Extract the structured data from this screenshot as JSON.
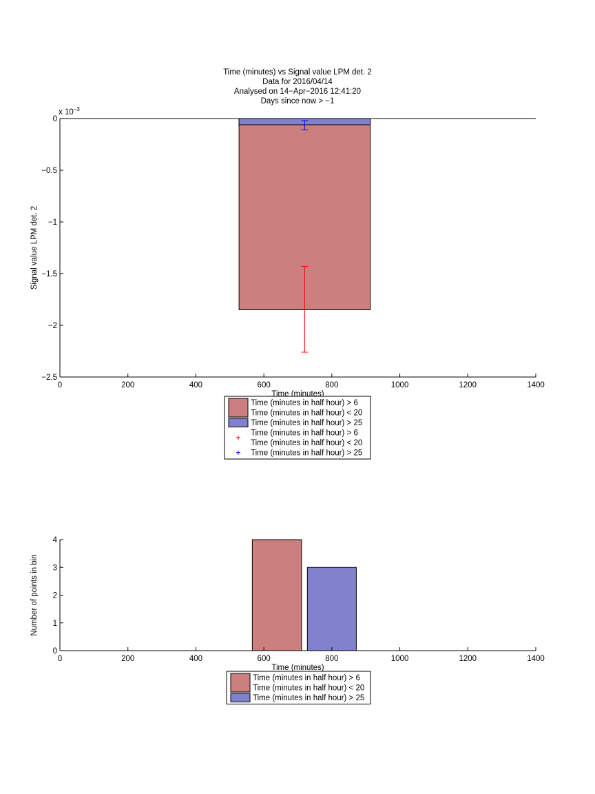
{
  "title_lines": [
    "Time (minutes) vs Signal value LPM det. 2",
    "Data for 2016/04/14",
    "Analysed on 14−Apr−2016 12:41:20",
    "Days since now > −1"
  ],
  "colors": {
    "series1": "#cc7f7f",
    "series2": "#8181cc",
    "err1": "#ff0000",
    "err2": "#0000ff"
  },
  "chart_data": [
    {
      "type": "bar",
      "xlabel": "Time (minutes)",
      "ylabel": "Signal value LPM det. 2",
      "y_exponent_label": "x 10",
      "y_exponent_power": "−3",
      "xlim": [
        0,
        1400
      ],
      "ylim": [
        -0.0025,
        0
      ],
      "x_ticks": [
        0,
        200,
        400,
        600,
        800,
        1000,
        1200,
        1400
      ],
      "x_tick_labels": [
        "0",
        "200",
        "400",
        "600",
        "800",
        "1000",
        "1200",
        "1400"
      ],
      "y_ticks": [
        0,
        -0.0005,
        -0.001,
        -0.0015,
        -0.002,
        -0.0025
      ],
      "y_tick_labels": [
        "0",
        "−0.5",
        "−1",
        "−1.5",
        "−2",
        "−2.5"
      ],
      "bar_x_range": [
        527,
        913
      ],
      "series": [
        {
          "name": "Time (minutes in half hour) > 6\nTime (minutes in half hour) < 20",
          "value": -0.00185,
          "error_x": 720,
          "error_low": -0.00226,
          "error_high": -0.00143
        },
        {
          "name": "Time (minutes in half hour) > 25",
          "value": -6e-05,
          "error_x": 720,
          "error_low": -0.00011,
          "error_high": -2e-05
        }
      ],
      "legend": {
        "placement": "below",
        "entries": [
          {
            "marker": "patch",
            "series": 0,
            "lines": [
              "Time (minutes in half hour) > 6",
              "Time (minutes in half hour) < 20"
            ]
          },
          {
            "marker": "patch",
            "series": 1,
            "lines": [
              "Time (minutes in half hour) > 25"
            ]
          },
          {
            "marker": "plus",
            "series": 0,
            "lines": [
              "Time (minutes in half hour) > 6",
              "Time (minutes in half hour) < 20"
            ]
          },
          {
            "marker": "plus",
            "series": 1,
            "lines": [
              "Time (minutes in half hour) > 25"
            ]
          }
        ]
      }
    },
    {
      "type": "bar",
      "xlabel": "Time (minutes)",
      "ylabel": "Number of points in bin",
      "xlim": [
        0,
        1400
      ],
      "ylim": [
        0,
        4
      ],
      "x_ticks": [
        0,
        200,
        400,
        600,
        800,
        1000,
        1200,
        1400
      ],
      "x_tick_labels": [
        "0",
        "200",
        "400",
        "600",
        "800",
        "1000",
        "1200",
        "1400"
      ],
      "y_ticks": [
        0,
        1,
        2,
        3,
        4
      ],
      "y_tick_labels": [
        "0",
        "1",
        "2",
        "3",
        "4"
      ],
      "bars": [
        {
          "series": 0,
          "x_start": 566,
          "x_end": 711,
          "value": 4
        },
        {
          "series": 1,
          "x_start": 728,
          "x_end": 872,
          "value": 3
        }
      ],
      "legend": {
        "placement": "below",
        "entries": [
          {
            "marker": "patch",
            "series": 0,
            "lines": [
              "Time (minutes in half hour) > 6",
              "Time (minutes in half hour) < 20"
            ]
          },
          {
            "marker": "patch",
            "series": 1,
            "lines": [
              "Time (minutes in half hour) > 25"
            ]
          }
        ]
      }
    }
  ]
}
